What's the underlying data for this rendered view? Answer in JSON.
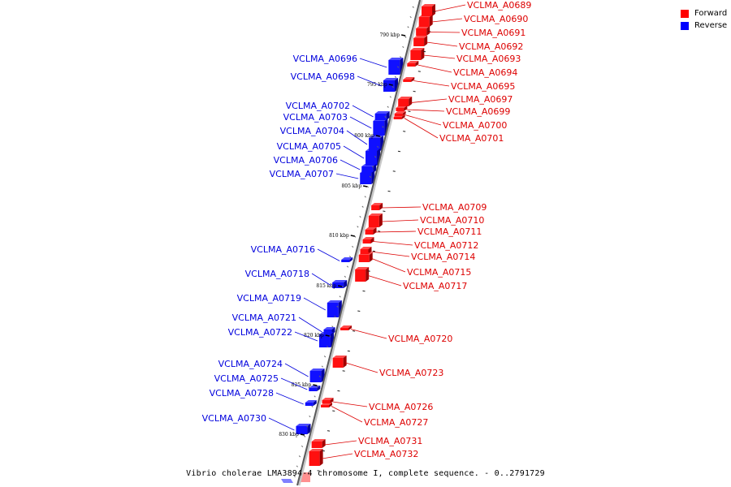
{
  "legend": {
    "forward_label": "Forward",
    "reverse_label": "Reverse",
    "forward_color": "#ff0000",
    "reverse_color": "#0000ff"
  },
  "caption": "Vibrio cholerae LMA3894-4 chromosome I, complete sequence. - 0..2791729",
  "ticks": [
    "790 kbp",
    "795 kbp",
    "800 kbp",
    "805 kbp",
    "810 kbp",
    "815 kbp",
    "820 kbp",
    "825 kbp",
    "830 kbp"
  ],
  "forward_genes": [
    "VCLMA_A0689",
    "VCLMA_A0690",
    "VCLMA_A0691",
    "VCLMA_A0692",
    "VCLMA_A0693",
    "VCLMA_A0694",
    "VCLMA_A0695",
    "VCLMA_A0697",
    "VCLMA_A0699",
    "VCLMA_A0700",
    "VCLMA_A0701",
    "VCLMA_A0709",
    "VCLMA_A0710",
    "VCLMA_A0711",
    "VCLMA_A0712",
    "VCLMA_A0714",
    "VCLMA_A0715",
    "VCLMA_A0717",
    "VCLMA_A0720",
    "VCLMA_A0723",
    "VCLMA_A0726",
    "VCLMA_A0727",
    "VCLMA_A0731",
    "VCLMA_A0732"
  ],
  "reverse_genes": [
    "VCLMA_A0696",
    "VCLMA_A0698",
    "VCLMA_A0702",
    "VCLMA_A0703",
    "VCLMA_A0704",
    "VCLMA_A0705",
    "VCLMA_A0706",
    "VCLMA_A0707",
    "VCLMA_A0716",
    "VCLMA_A0718",
    "VCLMA_A0719",
    "VCLMA_A0721",
    "VCLMA_A0722",
    "VCLMA_A0724",
    "VCLMA_A0725",
    "VCLMA_A0728",
    "VCLMA_A0730"
  ]
}
